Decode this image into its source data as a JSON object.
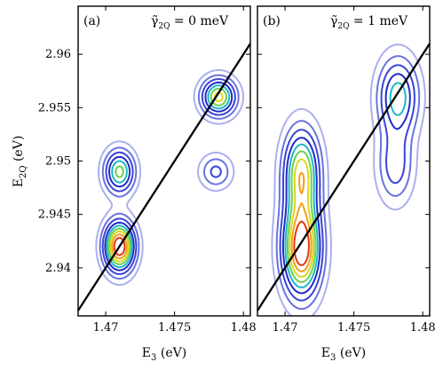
{
  "chart_data": [
    {
      "panel": "(a)",
      "annotation": {
        "symbol": "γ̃",
        "subscript": "2Q",
        "text": " = 0 meV"
      },
      "type": "contour",
      "xlim": [
        1.468,
        1.4805
      ],
      "ylim": [
        2.9355,
        2.9645
      ],
      "xticks": [
        1.47,
        1.475,
        1.48
      ],
      "yticks": [
        2.94,
        2.945,
        2.95,
        2.955,
        2.96
      ],
      "xlabel": "E3 (eV)",
      "ylabel": "E2Q (eV)",
      "diagonal": true,
      "peaks": [
        {
          "x": 1.471,
          "y": 2.942,
          "amp": 1.0,
          "sx": 0.00075,
          "sy": 0.0016
        },
        {
          "x": 1.471,
          "y": 2.949,
          "amp": 0.62,
          "sx": 0.00075,
          "sy": 0.0014
        },
        {
          "x": 1.4782,
          "y": 2.956,
          "amp": 0.72,
          "sx": 0.00085,
          "sy": 0.0012
        },
        {
          "x": 1.478,
          "y": 2.949,
          "amp": 0.3,
          "sx": 0.0008,
          "sy": 0.0011
        }
      ]
    },
    {
      "panel": "(b)",
      "annotation": {
        "symbol": "γ̃",
        "subscript": "2Q",
        "text": " = 1 meV"
      },
      "type": "contour",
      "xlim": [
        1.468,
        1.4805
      ],
      "ylim": [
        2.9355,
        2.9645
      ],
      "xticks": [
        1.47,
        1.475,
        1.48
      ],
      "yticks": [
        2.94,
        2.945,
        2.95,
        2.955,
        2.96
      ],
      "xlabel": "E3 (eV)",
      "diagonal": true,
      "peaks": [
        {
          "x": 1.4712,
          "y": 2.9418,
          "amp": 1.0,
          "sx": 0.00095,
          "sy": 0.003
        },
        {
          "x": 1.4712,
          "y": 2.949,
          "amp": 0.72,
          "sx": 0.0009,
          "sy": 0.0028
        },
        {
          "x": 1.4782,
          "y": 2.956,
          "amp": 0.55,
          "sx": 0.001,
          "sy": 0.0025
        },
        {
          "x": 1.478,
          "y": 2.9495,
          "amp": 0.33,
          "sx": 0.0009,
          "sy": 0.0024
        }
      ]
    }
  ],
  "contour_levels": [
    0.08,
    0.17,
    0.27,
    0.38,
    0.48,
    0.58,
    0.68,
    0.78,
    0.88
  ],
  "contour_colors": [
    "#aab0ee",
    "#6a72e0",
    "#3a44d6",
    "#1f2bc8",
    "#20b8c8",
    "#6cd050",
    "#d8d820",
    "#f0a020",
    "#e03a10"
  ]
}
